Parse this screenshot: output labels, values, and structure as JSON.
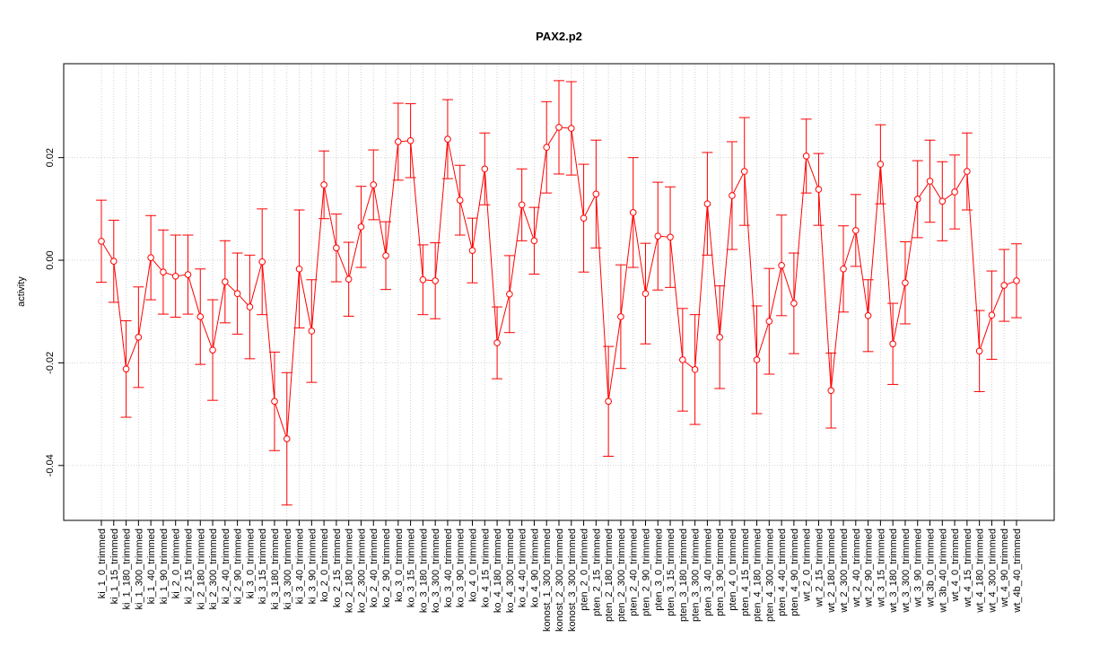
{
  "chart_data": {
    "type": "line",
    "title": "PAX2.p2",
    "y_label": "activity",
    "categories": [
      "ki_1_0_trimmed",
      "ki_1_15_trimmed",
      "ki_1_180_trimmed",
      "ki_1_300_trimmed",
      "ki_1_40_trimmed",
      "ki_1_90_trimmed",
      "ki_2_0_trimmed",
      "ki_2_15_trimmed",
      "ki_2_180_trimmed",
      "ki_2_300_trimmed",
      "ki_2_40_trimmed",
      "ki_2_90_trimmed",
      "ki_3_0_trimmed",
      "ki_3_15_trimmed",
      "ki_3_180_trimmed",
      "ki_3_300_trimmed",
      "ki_3_40_trimmed",
      "ki_3_90_trimmed",
      "ko_2_0_trimmed",
      "ko_2_15_trimmed",
      "ko_2_180_trimmed",
      "ko_2_300_trimmed",
      "ko_2_40_trimmed",
      "ko_2_90_trimmed",
      "ko_3_0_trimmed",
      "ko_3_15_trimmed",
      "ko_3_180_trimmed",
      "ko_3_300_trimmed",
      "ko_3_40_trimmed",
      "ko_3_90_trimmed",
      "ko_4_0_trimmed",
      "ko_4_15_trimmed",
      "ko_4_180_trimmed",
      "ko_4_300_trimmed",
      "ko_4_40_trimmed",
      "ko_4_90_trimmed",
      "konost_1_300_trimmed",
      "konost_2_300_trimmed",
      "konost_3_300_trimmed",
      "pten_2_0_trimmed",
      "pten_2_15_trimmed",
      "pten_2_180_trimmed",
      "pten_2_300_trimmed",
      "pten_2_40_trimmed",
      "pten_2_90_trimmed",
      "pten_3_0_trimmed",
      "pten_3_15_trimmed",
      "pten_3_180_trimmed",
      "pten_3_300_trimmed",
      "pten_3_40_trimmed",
      "pten_3_90_trimmed",
      "pten_4_0_trimmed",
      "pten_4_15_trimmed",
      "pten_4_180_trimmed",
      "pten_4_300_trimmed",
      "pten_4_40_trimmed",
      "pten_4_90_trimmed",
      "wt_2_0_trimmed",
      "wt_2_15_trimmed",
      "wt_2_180_trimmed",
      "wt_2_300_trimmed",
      "wt_2_40_trimmed",
      "wt_2_90_trimmed",
      "wt_3_15_trimmed",
      "wt_3_180_trimmed",
      "wt_3_300_trimmed",
      "wt_3_90_trimmed",
      "wt_3b_0_trimmed",
      "wt_3b_40_trimmed",
      "wt_4_0_trimmed",
      "wt_4_15_trimmed",
      "wt_4_180_trimmed",
      "wt_4_300_trimmed",
      "wt_4_90_trimmed",
      "wt_4b_40_trimmed"
    ],
    "series": [
      {
        "color": "#ff0000",
        "values": [
          0.0037,
          -0.0002,
          -0.0212,
          -0.015,
          0.0005,
          -0.0023,
          -0.0031,
          -0.0028,
          -0.011,
          -0.0175,
          -0.0042,
          -0.0065,
          -0.0091,
          -0.0003,
          -0.0275,
          -0.0348,
          -0.0017,
          -0.0138,
          0.0147,
          0.0024,
          -0.0037,
          0.0065,
          0.0147,
          0.0009,
          0.0231,
          0.0233,
          -0.0038,
          -0.004,
          0.0236,
          0.0117,
          0.0019,
          0.0178,
          -0.0161,
          -0.0066,
          0.0108,
          0.0038,
          0.022,
          0.0259,
          0.0257,
          0.0082,
          0.0129,
          -0.0275,
          -0.011,
          0.0093,
          -0.0065,
          0.0047,
          0.0045,
          -0.0194,
          -0.0213,
          0.011,
          -0.015,
          0.0126,
          0.0173,
          -0.0194,
          -0.0119,
          -0.001,
          -0.0084,
          0.0203,
          0.0138,
          -0.0254,
          -0.0017,
          0.0058,
          -0.0108,
          0.0187,
          -0.0163,
          -0.0044,
          0.0119,
          0.0154,
          0.0115,
          0.0133,
          0.0173,
          -0.0177,
          -0.0107,
          -0.0049,
          -0.004
        ],
        "errors": [
          0.008,
          0.008,
          0.0094,
          0.0098,
          0.0082,
          0.0082,
          0.008,
          0.0077,
          0.0093,
          0.0098,
          0.008,
          0.0079,
          0.0101,
          0.0103,
          0.0096,
          0.0129,
          0.0115,
          0.01,
          0.0066,
          0.0066,
          0.0072,
          0.0079,
          0.0068,
          0.0066,
          0.0075,
          0.0072,
          0.0068,
          0.0074,
          0.0077,
          0.0068,
          0.0063,
          0.007,
          0.007,
          0.0075,
          0.007,
          0.0065,
          0.0089,
          0.0091,
          0.0091,
          0.0105,
          0.0105,
          0.0107,
          0.0101,
          0.0107,
          0.0098,
          0.0105,
          0.0098,
          0.01,
          0.0107,
          0.01,
          0.01,
          0.0105,
          0.0105,
          0.0105,
          0.0103,
          0.0098,
          0.0098,
          0.0072,
          0.007,
          0.0073,
          0.0084,
          0.007,
          0.007,
          0.0077,
          0.0079,
          0.008,
          0.0075,
          0.008,
          0.0077,
          0.0072,
          0.0075,
          0.0079,
          0.0086,
          0.007,
          0.0072
        ]
      }
    ],
    "ylim": [
      -0.0507,
      0.0383
    ],
    "yticks": [
      -0.04,
      -0.02,
      {
        "value": 0,
        "label": "0.00"
      },
      0.02
    ],
    "grid": true
  }
}
